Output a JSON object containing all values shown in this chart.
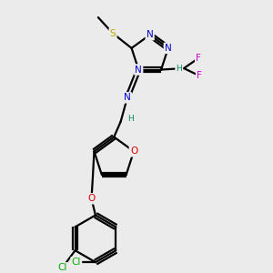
{
  "background_color": "#ebebeb",
  "figsize": [
    3.0,
    3.0
  ],
  "dpi": 100,
  "bond_color": "#000000",
  "atom_colors": {
    "N": "#0000cc",
    "O": "#dd0000",
    "S": "#bbaa00",
    "F": "#cc00cc",
    "Cl": "#00aa00",
    "H": "#008866",
    "C": "#000000"
  },
  "xlim": [
    0,
    10
  ],
  "ylim": [
    0,
    10
  ]
}
